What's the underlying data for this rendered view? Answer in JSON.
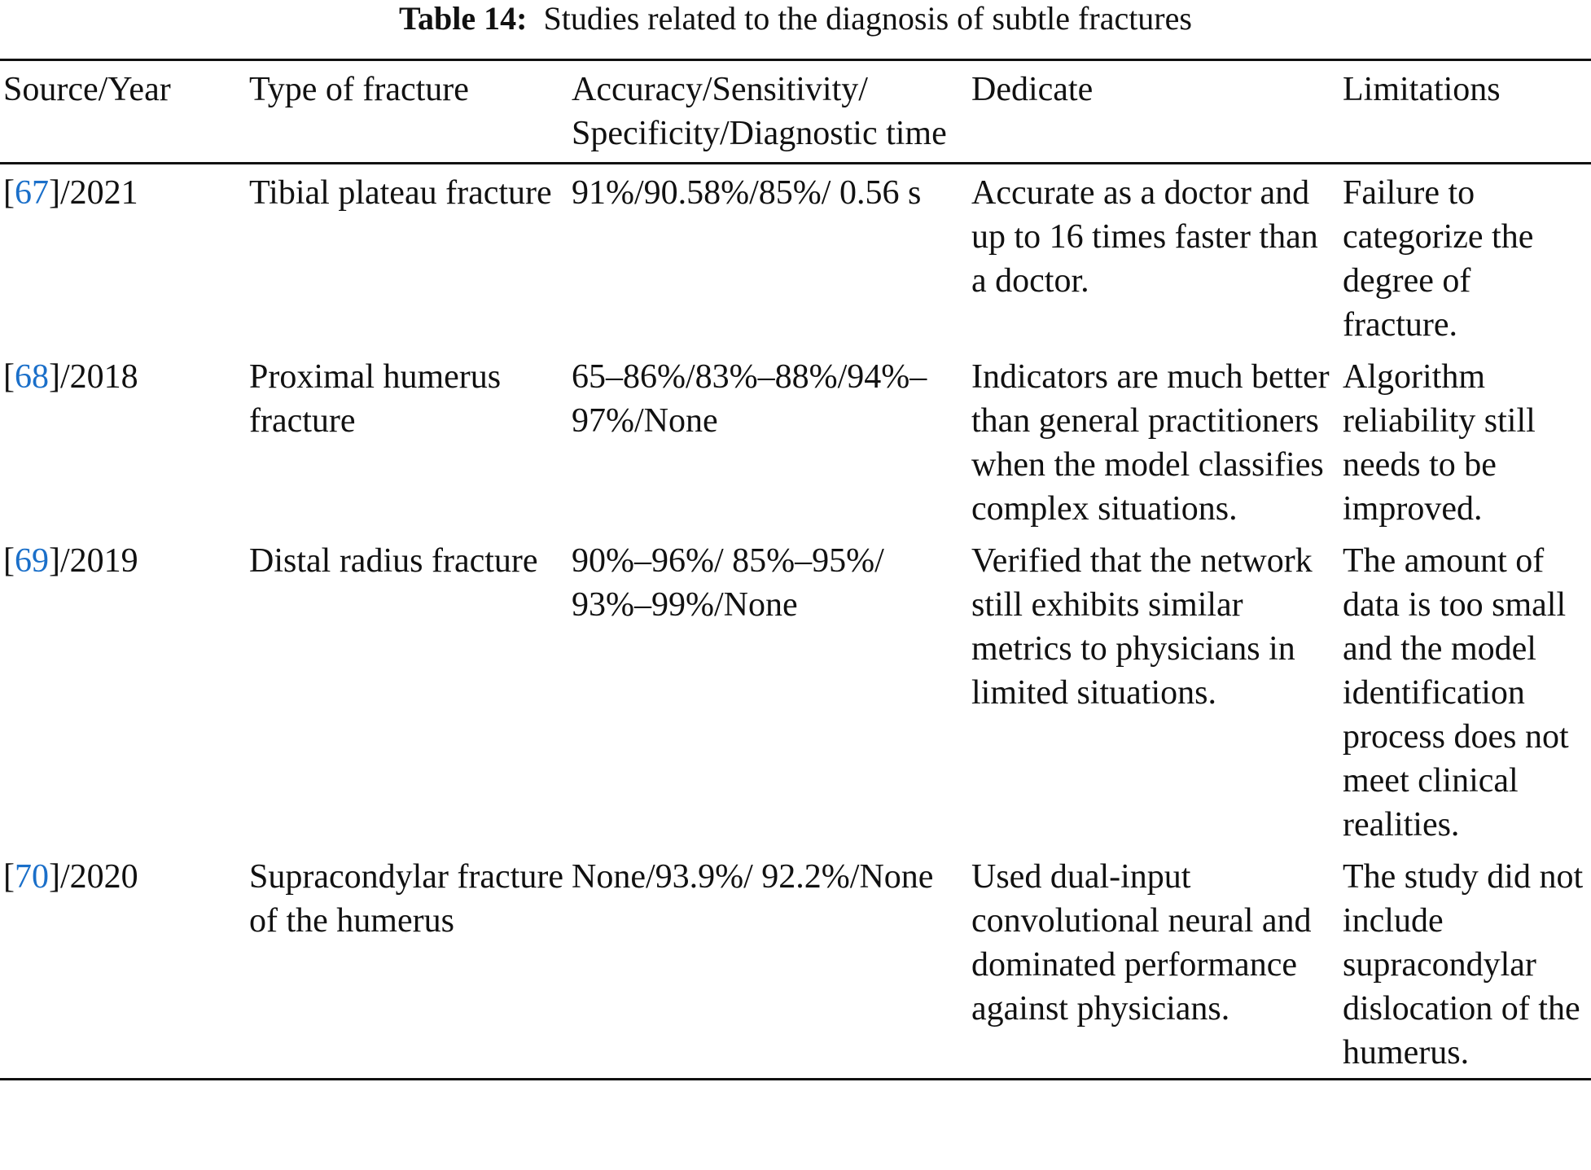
{
  "caption": {
    "label": "Table 14:",
    "text": "Studies related to the diagnosis of subtle fractures"
  },
  "columns": [
    "Source/Year",
    "Type of fracture",
    "Accuracy/Sensitivity/ Specificity/Diagnostic time",
    "Dedicate",
    "Limitations"
  ],
  "rows": [
    {
      "ref": "67",
      "year": "]/2021",
      "type": "Tibial plateau fracture",
      "metrics": "91%/90.58%/85%/ 0.56 s",
      "dedicate": "Accurate as a doctor and up to 16 times faster than a doctor.",
      "limitations": "Failure to categorize the degree of fracture."
    },
    {
      "ref": "68",
      "year": "]/2018",
      "type": "Proximal humerus fracture",
      "metrics": "65–86%/83%–88%/94%–97%/None",
      "dedicate": "Indicators are much better than general practitioners when the model classifies complex situations.",
      "limitations": "Algorithm reliability still needs to be improved."
    },
    {
      "ref": "69",
      "year": "]/2019",
      "type": "Distal radius fracture",
      "metrics": "90%–96%/ 85%–95%/ 93%–99%/None",
      "dedicate": "Verified that the network still exhibits similar metrics to physicians in limited situations.",
      "limitations": "The amount of data is too small and the model identification process does not meet clinical realities."
    },
    {
      "ref": "70",
      "year": "]/2020",
      "type": "Supracondylar fracture of the humerus",
      "metrics": "None/93.9%/ 92.2%/None",
      "dedicate": "Used dual-input convolutional neural and dominated performance against physicians.",
      "limitations": "The study did not include supracondylar dislocation of the humerus."
    }
  ],
  "colors": {
    "link": "#1a6fc9",
    "text": "#111111"
  }
}
